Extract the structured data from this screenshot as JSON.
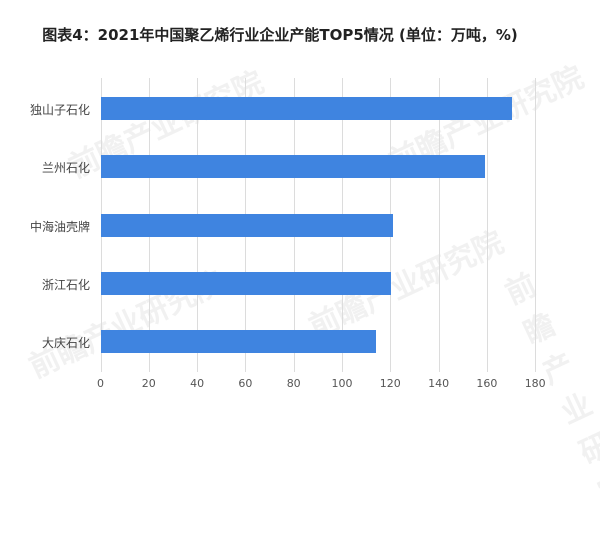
{
  "title": "图表4：2021年中国聚乙烯行业企业产能TOP5情况 (单位：万吨，%)",
  "chart_data": {
    "type": "bar",
    "orientation": "horizontal",
    "title": "图表4：2021年中国聚乙烯行业企业产能TOP5情况 (单位：万吨，%)",
    "categories": [
      "独山子石化",
      "兰州石化",
      "中海油壳牌",
      "浙江石化",
      "大庆石化"
    ],
    "values": [
      170,
      159,
      121,
      120,
      114
    ],
    "xlabel": "",
    "ylabel": "",
    "xlim": [
      0,
      180
    ],
    "xticks": [
      0,
      20,
      40,
      60,
      80,
      100,
      120,
      140,
      160,
      180
    ],
    "grid": true,
    "legend": null,
    "bar_color": "#3f84e0"
  },
  "watermark": "前瞻产业研究院"
}
